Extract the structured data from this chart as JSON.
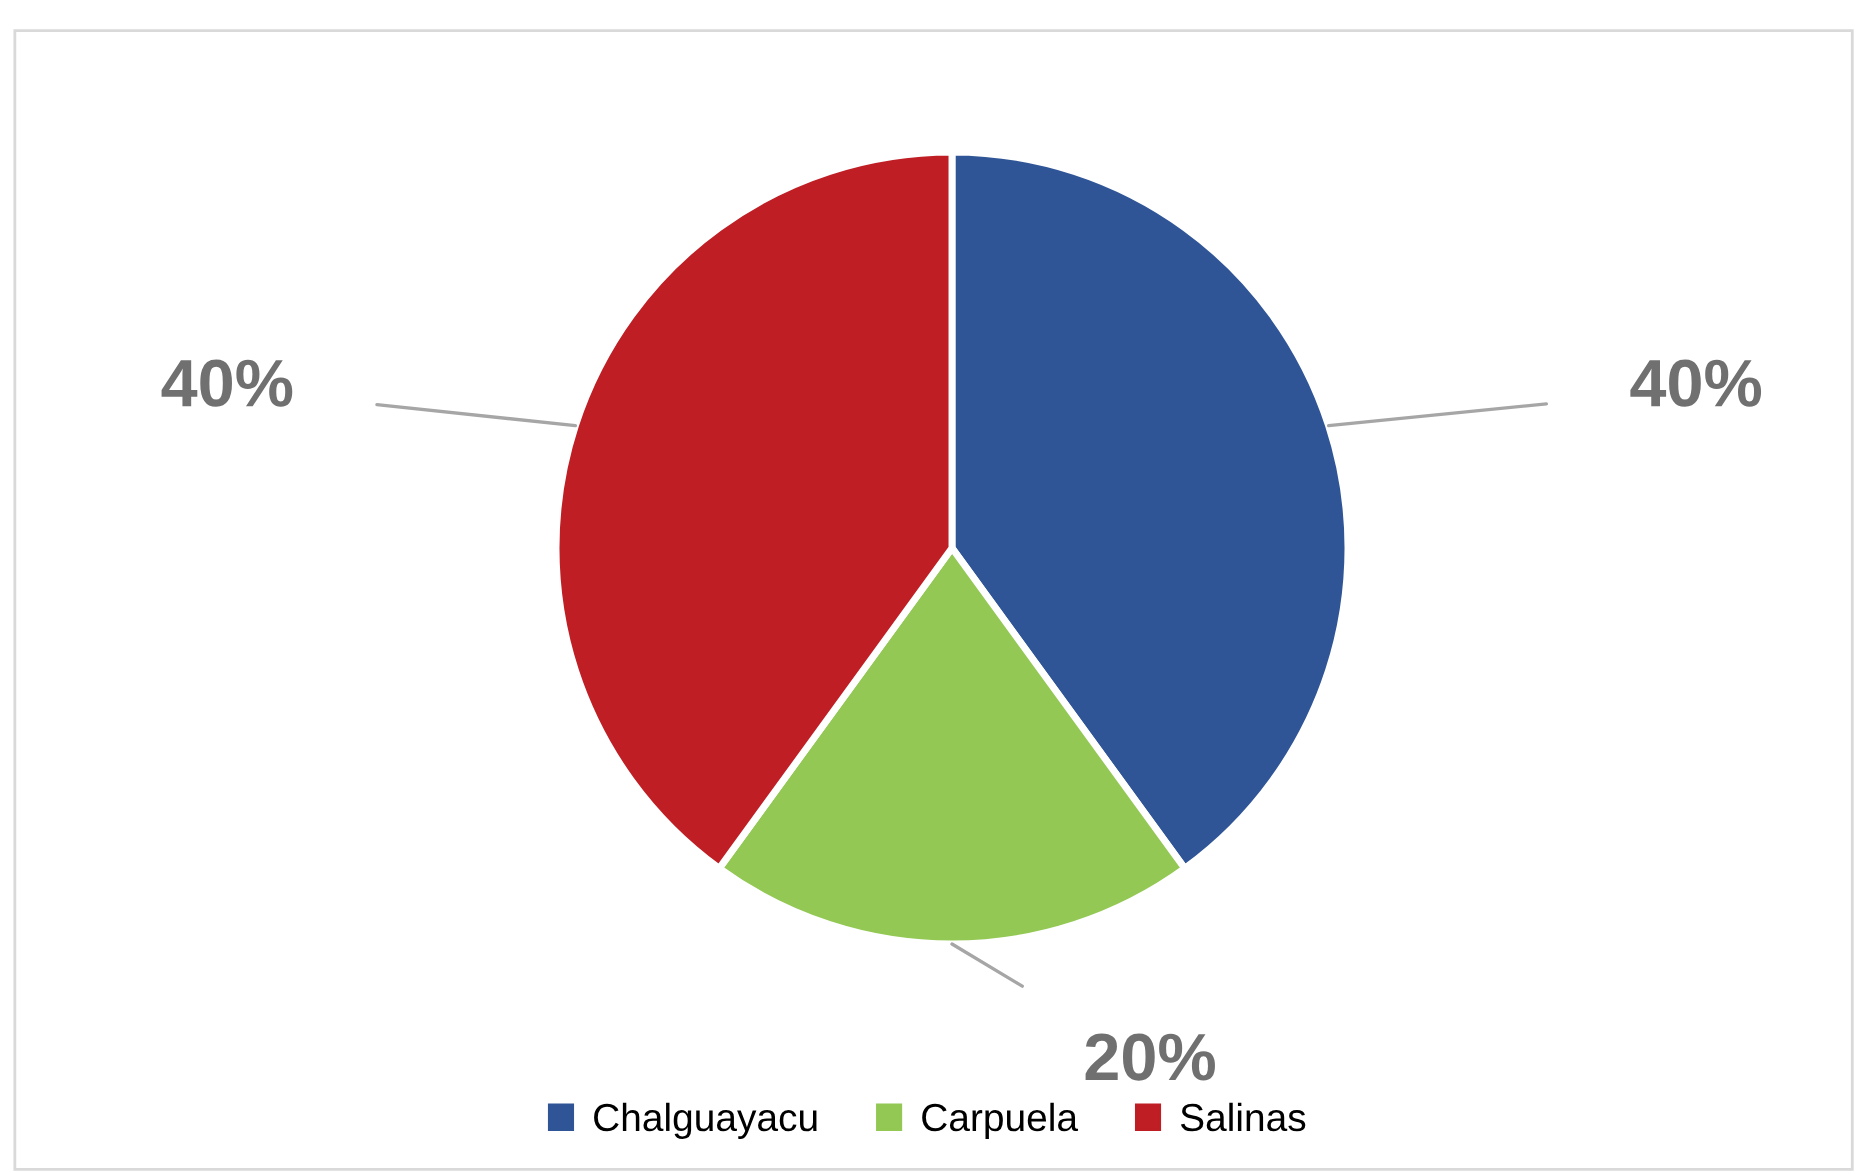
{
  "chart_data": {
    "type": "pie",
    "categories": [
      "Chalguayacu",
      "Carpuela",
      "Salinas"
    ],
    "values": [
      40,
      20,
      40
    ],
    "colors": [
      "#2f5597",
      "#92c853",
      "#be1e24"
    ],
    "value_labels": [
      "40%",
      "20%",
      "40%"
    ],
    "legend": "bottom"
  }
}
